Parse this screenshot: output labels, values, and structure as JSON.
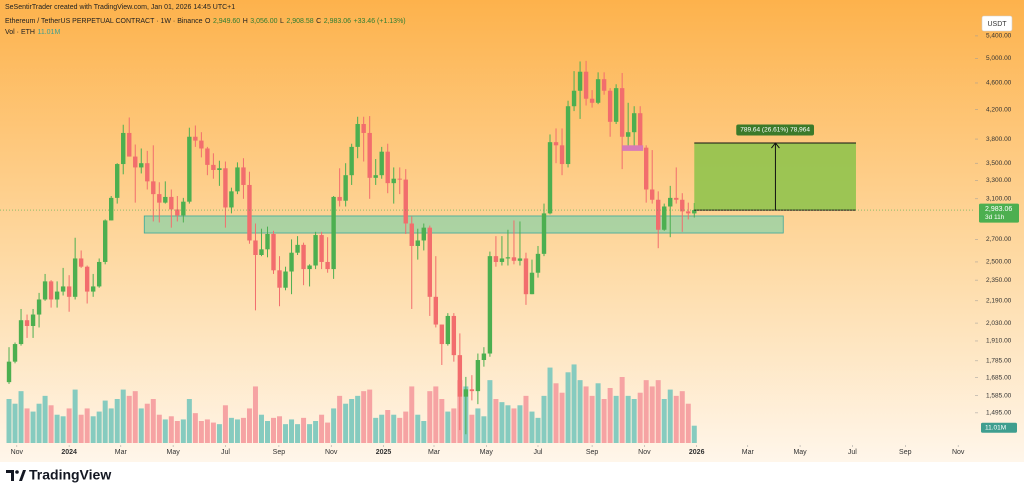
{
  "chart_data": {
    "type": "candlestick",
    "credit": "SeSentirTrader created with TradingView.com, Jan 01, 2026 14:45 UTC+1",
    "symbol": "Ethereum / TetherUS PERPETUAL CONTRACT · 1W · Binance",
    "ohlc_legend": [
      {
        "key": "O",
        "value": "2,949.60"
      },
      {
        "key": "H",
        "value": "3,056.00"
      },
      {
        "key": "L",
        "value": "2,908.58"
      },
      {
        "key": "C",
        "value": "2,983.06"
      }
    ],
    "change": "+33.46 (+1.13%)",
    "volume_title": "Vol · ETH",
    "last_volume_label": "11.01M",
    "currency": "USDT",
    "last_price_label": "2,983.06",
    "countdown": "3d 11h",
    "logo": "TradingView",
    "log_scale": true,
    "grid": false,
    "up_color": "#4caf50",
    "down_color": "#f26d6d",
    "volume_up_color": "#86cbbf",
    "volume_down_color": "#f6a3a3",
    "xlim": [
      -1.5,
      160.7
    ],
    "ylim": [
      1340,
      5740
    ],
    "vlim": [
      0,
      70
    ],
    "xticks": [
      {
        "value": 1.3,
        "label": "Nov"
      },
      {
        "value": 10,
        "label": "2024"
      },
      {
        "value": 18.6,
        "label": "Mar"
      },
      {
        "value": 27.3,
        "label": "May"
      },
      {
        "value": 36,
        "label": "Jul"
      },
      {
        "value": 44.9,
        "label": "Sep"
      },
      {
        "value": 53.6,
        "label": "Nov"
      },
      {
        "value": 62.3,
        "label": "2025"
      },
      {
        "value": 70.7,
        "label": "Mar"
      },
      {
        "value": 79.4,
        "label": "May"
      },
      {
        "value": 88,
        "label": "Jul"
      },
      {
        "value": 97,
        "label": "Sep"
      },
      {
        "value": 105.7,
        "label": "Nov"
      },
      {
        "value": 114.4,
        "label": "2026"
      },
      {
        "value": 122.9,
        "label": "Mar"
      },
      {
        "value": 131.6,
        "label": "May"
      },
      {
        "value": 140.3,
        "label": "Jul"
      },
      {
        "value": 149.1,
        "label": "Sep"
      },
      {
        "value": 157.9,
        "label": "Nov"
      }
    ],
    "yticks": [
      {
        "value": 5400,
        "label": "5,400.00"
      },
      {
        "value": 5000,
        "label": "5,000.00"
      },
      {
        "value": 4600,
        "label": "4,600.00"
      },
      {
        "value": 4200,
        "label": "4,200.00"
      },
      {
        "value": 3800,
        "label": "3,800.00"
      },
      {
        "value": 3500,
        "label": "3,500.00"
      },
      {
        "value": 3300,
        "label": "3,300.00"
      },
      {
        "value": 3100,
        "label": "3,100.00"
      },
      {
        "value": 2700,
        "label": "2,700.00"
      },
      {
        "value": 2500,
        "label": "2,500.00"
      },
      {
        "value": 2350,
        "label": "2,350.00"
      },
      {
        "value": 2190,
        "label": "2,190.00"
      },
      {
        "value": 2030,
        "label": "2,030.00"
      },
      {
        "value": 1910,
        "label": "1,910.00"
      },
      {
        "value": 1785,
        "label": "1,785.00"
      },
      {
        "value": 1685,
        "label": "1,685.00"
      },
      {
        "value": 1585,
        "label": "1,585.00"
      },
      {
        "value": 1495,
        "label": "1,495.00"
      }
    ],
    "ohlc": [
      [
        1660,
        1870,
        1650,
        1780
      ],
      [
        1780,
        1900,
        1770,
        1890
      ],
      [
        1890,
        2130,
        1880,
        2050
      ],
      [
        2050,
        2090,
        1930,
        2010
      ],
      [
        2010,
        2130,
        1930,
        2090
      ],
      [
        2090,
        2250,
        2000,
        2200
      ],
      [
        2200,
        2400,
        2190,
        2340
      ],
      [
        2340,
        2350,
        2140,
        2200
      ],
      [
        2200,
        2340,
        2140,
        2260
      ],
      [
        2260,
        2450,
        2230,
        2300
      ],
      [
        2300,
        2390,
        2110,
        2220
      ],
      [
        2220,
        2715,
        2200,
        2530
      ],
      [
        2530,
        2600,
        2450,
        2460
      ],
      [
        2460,
        2470,
        2170,
        2260
      ],
      [
        2260,
        2400,
        2220,
        2300
      ],
      [
        2300,
        2530,
        2290,
        2500
      ],
      [
        2500,
        2890,
        2480,
        2880
      ],
      [
        2880,
        3130,
        2880,
        3110
      ],
      [
        3110,
        3500,
        3050,
        3490
      ],
      [
        3490,
        3990,
        3370,
        3880
      ],
      [
        3880,
        4090,
        3580,
        3580
      ],
      [
        3580,
        3730,
        3060,
        3450
      ],
      [
        3450,
        3680,
        3380,
        3500
      ],
      [
        3500,
        3650,
        3200,
        3290
      ],
      [
        3290,
        3720,
        2870,
        3150
      ],
      [
        3150,
        3280,
        2860,
        3060
      ],
      [
        3060,
        3290,
        3050,
        3120
      ],
      [
        3120,
        3200,
        2810,
        2990
      ],
      [
        2990,
        3130,
        2870,
        2930
      ],
      [
        2930,
        3110,
        2860,
        3070
      ],
      [
        3070,
        3950,
        3050,
        3830
      ],
      [
        3830,
        3980,
        3700,
        3780
      ],
      [
        3780,
        3890,
        3570,
        3680
      ],
      [
        3680,
        3700,
        3360,
        3480
      ],
      [
        3480,
        3620,
        3320,
        3420
      ],
      [
        3420,
        3530,
        3240,
        3440
      ],
      [
        3440,
        3520,
        2810,
        3010
      ],
      [
        3010,
        3220,
        2950,
        3180
      ],
      [
        3180,
        3510,
        3150,
        3450
      ],
      [
        3450,
        3560,
        3100,
        3250
      ],
      [
        3250,
        3400,
        2660,
        2690
      ],
      [
        2690,
        2850,
        2120,
        2560
      ],
      [
        2560,
        2800,
        2550,
        2610
      ],
      [
        2610,
        2820,
        2540,
        2750
      ],
      [
        2750,
        2780,
        2400,
        2430
      ],
      [
        2430,
        2550,
        2150,
        2290
      ],
      [
        2290,
        2460,
        2270,
        2420
      ],
      [
        2420,
        2700,
        2240,
        2580
      ],
      [
        2580,
        2730,
        2560,
        2650
      ],
      [
        2650,
        2670,
        2310,
        2440
      ],
      [
        2440,
        2480,
        2300,
        2470
      ],
      [
        2470,
        2770,
        2440,
        2740
      ],
      [
        2740,
        2770,
        2440,
        2500
      ],
      [
        2500,
        2720,
        2410,
        2440
      ],
      [
        2440,
        3130,
        2360,
        3120
      ],
      [
        3120,
        3440,
        3020,
        3080
      ],
      [
        3080,
        3500,
        3020,
        3360
      ],
      [
        3360,
        3740,
        3250,
        3700
      ],
      [
        3700,
        4100,
        3560,
        4000
      ],
      [
        4000,
        4100,
        3520,
        3880
      ],
      [
        3880,
        4110,
        3100,
        3330
      ],
      [
        3330,
        3550,
        3250,
        3360
      ],
      [
        3360,
        3700,
        3320,
        3640
      ],
      [
        3640,
        3740,
        3160,
        3270
      ],
      [
        3270,
        3450,
        3050,
        3320
      ],
      [
        3320,
        3450,
        3150,
        3310
      ],
      [
        3310,
        3430,
        2750,
        2850
      ],
      [
        2850,
        2920,
        2130,
        2640
      ],
      [
        2640,
        2800,
        2520,
        2690
      ],
      [
        2690,
        2850,
        2600,
        2810
      ],
      [
        2810,
        2830,
        2080,
        2220
      ],
      [
        2220,
        2550,
        2000,
        2020
      ],
      [
        2020,
        2020,
        1760,
        1890
      ],
      [
        1890,
        2100,
        1880,
        2080
      ],
      [
        2080,
        2100,
        1780,
        1820
      ],
      [
        1820,
        1960,
        1410,
        1580
      ],
      [
        1580,
        1690,
        1390,
        1620
      ],
      [
        1620,
        1700,
        1560,
        1610
      ],
      [
        1610,
        1830,
        1540,
        1790
      ],
      [
        1790,
        1870,
        1750,
        1830
      ],
      [
        1830,
        2590,
        1810,
        2550
      ],
      [
        2550,
        2730,
        2460,
        2500
      ],
      [
        2500,
        2730,
        2470,
        2530
      ],
      [
        2530,
        2790,
        2470,
        2540
      ],
      [
        2540,
        2880,
        2480,
        2510
      ],
      [
        2510,
        2870,
        2470,
        2530
      ],
      [
        2530,
        2580,
        2160,
        2240
      ],
      [
        2240,
        2520,
        2240,
        2410
      ],
      [
        2410,
        2640,
        2370,
        2570
      ],
      [
        2570,
        3050,
        2550,
        2950
      ],
      [
        2950,
        3860,
        2940,
        3760
      ],
      [
        3760,
        3940,
        3500,
        3720
      ],
      [
        3720,
        3940,
        3360,
        3490
      ],
      [
        3490,
        4330,
        3450,
        4250
      ],
      [
        4250,
        4790,
        4180,
        4480
      ],
      [
        4480,
        4950,
        4070,
        4780
      ],
      [
        4780,
        4960,
        4260,
        4360
      ],
      [
        4360,
        4490,
        4230,
        4300
      ],
      [
        4300,
        4770,
        4280,
        4660
      ],
      [
        4660,
        4770,
        4420,
        4480
      ],
      [
        4480,
        4520,
        3830,
        4030
      ],
      [
        4030,
        4580,
        4000,
        4520
      ],
      [
        4520,
        4760,
        3430,
        3830
      ],
      [
        3830,
        4300,
        3690,
        3890
      ],
      [
        3890,
        4250,
        3700,
        4150
      ],
      [
        4150,
        4250,
        3660,
        3690
      ],
      [
        3690,
        3720,
        3060,
        3200
      ],
      [
        3200,
        3660,
        3050,
        3090
      ],
      [
        3090,
        3180,
        2620,
        2790
      ],
      [
        2790,
        3050,
        2780,
        3020
      ],
      [
        3020,
        3240,
        2720,
        3110
      ],
      [
        3110,
        3450,
        3050,
        3090
      ],
      [
        3090,
        3160,
        2770,
        2970
      ],
      [
        2970,
        3060,
        2890,
        2950
      ],
      [
        2949.6,
        3056,
        2908.58,
        2983.06
      ]
    ],
    "volume": [
      28,
      25,
      33,
      22,
      20,
      25,
      30,
      24,
      18,
      17,
      22,
      34,
      18,
      22,
      17,
      20,
      27,
      22,
      28,
      34,
      30,
      33,
      22,
      25,
      28,
      18,
      15,
      17,
      14,
      15,
      28,
      19,
      14,
      15,
      13,
      12,
      24,
      16,
      15,
      16,
      22,
      36,
      18,
      14,
      16,
      17,
      12,
      15,
      12,
      16,
      12,
      14,
      18,
      13,
      22,
      30,
      25,
      28,
      30,
      33,
      34,
      16,
      18,
      21,
      18,
      16,
      20,
      36,
      18,
      14,
      33,
      36,
      28,
      20,
      22,
      40,
      36,
      18,
      22,
      17,
      40,
      28,
      26,
      24,
      22,
      24,
      30,
      20,
      16,
      30,
      48,
      38,
      32,
      45,
      50,
      40,
      36,
      30,
      38,
      28,
      35,
      30,
      42,
      30,
      28,
      32,
      40,
      36,
      40,
      28,
      34,
      30,
      33,
      25,
      11.01
    ],
    "support_zone": {
      "x": [
        22.5,
        128.8
      ],
      "y": [
        2759,
        2924
      ],
      "color": "#8fd1a6"
    },
    "measure": {
      "x": [
        114,
        140.9
      ],
      "y": [
        2983,
        3749
      ],
      "arrow_x": 127.5,
      "label": "789.64 (26.61%) 78,964",
      "color": "#8bc34a"
    },
    "marker": {
      "x": [
        102,
        105.5
      ],
      "y": [
        3650,
        3720
      ],
      "color": "#d97ab8"
    }
  }
}
